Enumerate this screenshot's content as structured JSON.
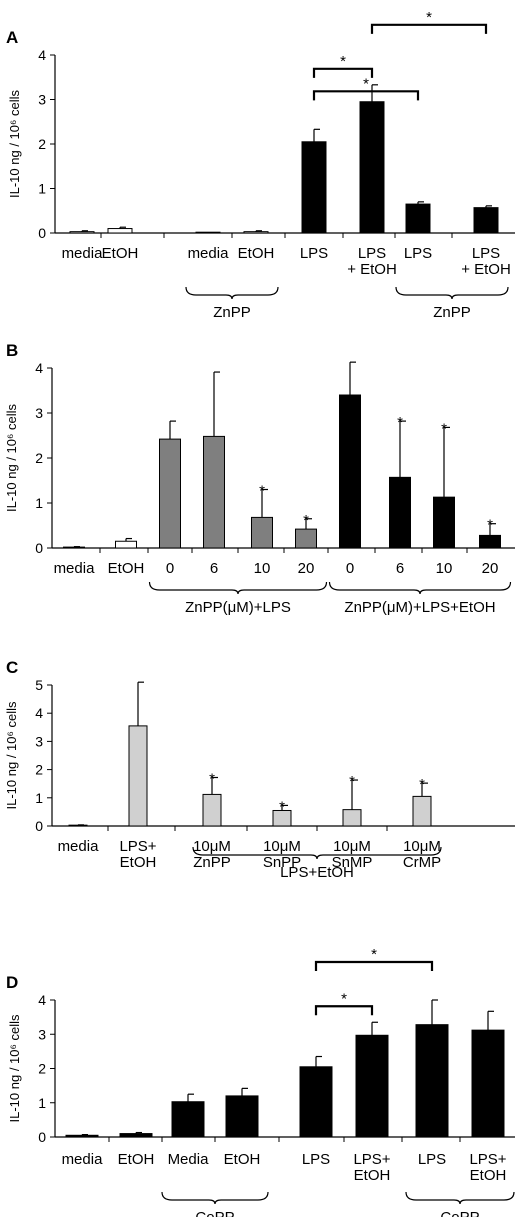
{
  "figure": {
    "panels": [
      "A",
      "B",
      "C",
      "D"
    ]
  },
  "colors": {
    "black_bar": "#000000",
    "gray_bar": "#7f7f7f",
    "light_gray_bar": "#d0d0d0",
    "white_bar": "#ffffff",
    "axis": "#000000"
  },
  "chart_data": [
    {
      "panel": "A",
      "type": "bar",
      "ylabel": "IL-10 ng / 10⁶ cells",
      "ylim": [
        0,
        4
      ],
      "yticks": [
        "0",
        "1",
        "2",
        "3",
        "4"
      ],
      "categories": [
        "media",
        "EtOH",
        "media",
        "EtOH",
        "LPS",
        "LPS\n+ EtOH",
        "LPS",
        "LPS\n+ EtOH"
      ],
      "values": [
        0.03,
        0.1,
        0.0,
        0.03,
        2.05,
        2.95,
        0.65,
        0.57
      ],
      "errors": [
        0.02,
        0.03,
        0.0,
        0.02,
        0.28,
        0.38,
        0.05,
        0.04
      ],
      "bar_colors": [
        "white",
        "white",
        "white",
        "white",
        "black",
        "black",
        "black",
        "black"
      ],
      "groups": [
        {
          "label": "ZnPP",
          "from": 2,
          "to": 3
        },
        {
          "label": "ZnPP",
          "from": 6,
          "to": 7
        }
      ],
      "significance": [
        {
          "from": 4,
          "to": 5,
          "label": "*"
        },
        {
          "from": 4,
          "to": 6,
          "label": "*"
        },
        {
          "from": 5,
          "to": 7,
          "label": "*"
        }
      ]
    },
    {
      "panel": "B",
      "type": "bar",
      "ylabel": "IL-10 ng / 10⁶ cells",
      "ylim": [
        0,
        4
      ],
      "yticks": [
        "0",
        "1",
        "2",
        "3",
        "4"
      ],
      "categories": [
        "media",
        "EtOH",
        "0",
        "6",
        "10",
        "20",
        "0",
        "6",
        "10",
        "20"
      ],
      "values": [
        0.02,
        0.15,
        2.42,
        2.48,
        0.68,
        0.42,
        3.4,
        1.57,
        1.13,
        0.28
      ],
      "errors": [
        0.01,
        0.06,
        0.4,
        1.43,
        0.62,
        0.23,
        0.73,
        1.25,
        1.55,
        0.26
      ],
      "bar_colors": [
        "white",
        "white",
        "gray",
        "gray",
        "gray",
        "gray",
        "black",
        "black",
        "black",
        "black"
      ],
      "stars": [
        "",
        "",
        "",
        "",
        "*",
        "*",
        "",
        "*",
        "*",
        "*"
      ],
      "groups": [
        {
          "label": "ZnPP(μM)+LPS",
          "from": 2,
          "to": 5
        },
        {
          "label": "ZnPP(μM)+LPS+EtOH",
          "from": 6,
          "to": 9
        }
      ]
    },
    {
      "panel": "C",
      "type": "bar",
      "ylabel": "IL-10 ng / 10⁶ cells",
      "ylim": [
        0,
        5
      ],
      "yticks": [
        "0",
        "1",
        "2",
        "3",
        "4",
        "5"
      ],
      "categories": [
        "media",
        "LPS+\nEtOH",
        "10μM\nZnPP",
        "10μM\nSnPP",
        "10μM\nSnMP",
        "10μM\nCrMP"
      ],
      "values": [
        0.03,
        3.55,
        1.12,
        0.55,
        0.58,
        1.05
      ],
      "errors": [
        0.01,
        1.55,
        0.6,
        0.18,
        1.05,
        0.47
      ],
      "bar_colors": [
        "lightgray",
        "lightgray",
        "lightgray",
        "lightgray",
        "lightgray",
        "lightgray"
      ],
      "stars": [
        "",
        "",
        "*",
        "*",
        "*",
        "*"
      ],
      "groups": [
        {
          "label": "LPS+EtOH",
          "from": 2,
          "to": 5
        }
      ]
    },
    {
      "panel": "D",
      "type": "bar",
      "ylabel": "IL-10 ng / 10⁶ cells",
      "ylim": [
        0,
        4
      ],
      "yticks": [
        "0",
        "1",
        "2",
        "3",
        "4"
      ],
      "categories": [
        "media",
        "EtOH",
        "Media",
        "EtOH",
        "LPS",
        "LPS+\nEtOH",
        "LPS",
        "LPS+\nEtOH"
      ],
      "values": [
        0.05,
        0.1,
        1.03,
        1.2,
        2.05,
        2.97,
        3.28,
        3.12
      ],
      "errors": [
        0.02,
        0.03,
        0.22,
        0.22,
        0.3,
        0.38,
        0.72,
        0.55
      ],
      "bar_colors": [
        "black",
        "black",
        "black",
        "black",
        "black",
        "black",
        "black",
        "black"
      ],
      "groups": [
        {
          "label": "CoPP",
          "from": 2,
          "to": 3
        },
        {
          "label": "CoPP",
          "from": 6,
          "to": 7
        }
      ],
      "significance": [
        {
          "from": 4,
          "to": 5,
          "label": "*"
        },
        {
          "from": 4,
          "to": 6,
          "label": "*"
        }
      ]
    }
  ]
}
